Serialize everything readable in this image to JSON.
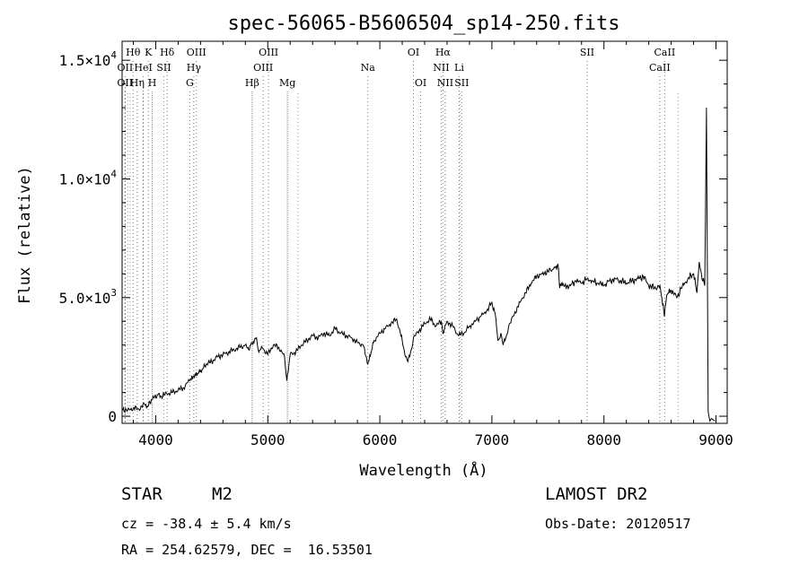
{
  "chart_data": {
    "type": "line",
    "title": "spec-56065-B5606504_sp14-250.fits",
    "xlabel": "Wavelength (Å)",
    "ylabel": "Flux (relative)",
    "xlim": [
      3700,
      9100
    ],
    "ylim": [
      -300,
      15800
    ],
    "x_ticks": [
      4000,
      5000,
      6000,
      7000,
      8000,
      9000
    ],
    "x_tick_labels": [
      "4000",
      "5000",
      "6000",
      "7000",
      "8000",
      "9000"
    ],
    "y_ticks": [
      0,
      5000,
      10000,
      15000
    ],
    "y_tick_labels": [
      {
        "mantissa": "0",
        "exp": ""
      },
      {
        "mantissa": "5.0×10",
        "exp": "3"
      },
      {
        "mantissa": "1.0×10",
        "exp": "4"
      },
      {
        "mantissa": "1.5×10",
        "exp": "4"
      }
    ],
    "series": [
      {
        "x": [
          3700,
          3750,
          3800,
          3850,
          3900,
          3930,
          3960,
          3990,
          4020,
          4050,
          4100,
          4150,
          4200,
          4250,
          4300,
          4340,
          4380,
          4420,
          4450,
          4500,
          4550,
          4600,
          4650,
          4700,
          4750,
          4800,
          4830,
          4860,
          4900,
          4920,
          4950,
          5000,
          5050,
          5100,
          5150,
          5170,
          5200,
          5250,
          5300,
          5350,
          5400,
          5450,
          5500,
          5550,
          5600,
          5650,
          5700,
          5750,
          5800,
          5850,
          5893,
          5950,
          6000,
          6050,
          6100,
          6150,
          6200,
          6230,
          6250,
          6280,
          6300,
          6350,
          6400,
          6450,
          6500,
          6550,
          6563,
          6600,
          6650,
          6700,
          6750,
          6800,
          6850,
          6900,
          6950,
          7000,
          7030,
          7054,
          7080,
          7100,
          7130,
          7150,
          7200,
          7250,
          7300,
          7350,
          7400,
          7450,
          7500,
          7550,
          7590,
          7605,
          7620,
          7650,
          7700,
          7750,
          7800,
          7850,
          7900,
          7950,
          8000,
          8050,
          8100,
          8150,
          8200,
          8250,
          8300,
          8350,
          8400,
          8450,
          8500,
          8540,
          8560,
          8600,
          8650,
          8700,
          8750,
          8800,
          8830,
          8850,
          8870,
          8900,
          8915,
          8930,
          8945,
          8960,
          8990
        ],
        "y": [
          300,
          250,
          350,
          300,
          500,
          400,
          700,
          800,
          900,
          850,
          950,
          1000,
          1100,
          1200,
          1500,
          1700,
          1800,
          2000,
          2200,
          2300,
          2500,
          2600,
          2700,
          2800,
          2900,
          3000,
          2800,
          3100,
          3300,
          2700,
          2900,
          2600,
          3000,
          2900,
          2500,
          1500,
          2600,
          2700,
          3000,
          3200,
          3400,
          3300,
          3500,
          3400,
          3700,
          3500,
          3400,
          3300,
          3100,
          3000,
          2200,
          3200,
          3500,
          3700,
          3900,
          4100,
          3200,
          2500,
          2300,
          2800,
          3300,
          3600,
          3900,
          4100,
          3800,
          4000,
          3500,
          4000,
          3800,
          3400,
          3500,
          3800,
          4000,
          4200,
          4400,
          4800,
          4300,
          3200,
          3500,
          3000,
          3400,
          3800,
          4300,
          4800,
          5200,
          5600,
          5900,
          6000,
          6100,
          6200,
          6400,
          5400,
          5600,
          5500,
          5500,
          5700,
          5600,
          5800,
          5700,
          5600,
          5500,
          5700,
          5800,
          5700,
          5600,
          5700,
          5800,
          5900,
          5500,
          5400,
          5500,
          4200,
          5100,
          5300,
          5000,
          5500,
          5800,
          6000,
          5200,
          6500,
          6000,
          5500,
          13000,
          200,
          -200,
          -100,
          -200
        ]
      }
    ],
    "lines": [
      {
        "label": "Hθ",
        "x": 3798,
        "row": 0
      },
      {
        "label": "K",
        "x": 3934,
        "row": 0
      },
      {
        "label": "Hδ",
        "x": 4102,
        "row": 0
      },
      {
        "label": "OIII",
        "x": 4363,
        "row": 0
      },
      {
        "label": "OIII",
        "x": 5007,
        "row": 0
      },
      {
        "label": "OI",
        "x": 6300,
        "row": 0
      },
      {
        "label": "Hα",
        "x": 6563,
        "row": 0
      },
      {
        "label": "SII",
        "x": 7850,
        "row": 0
      },
      {
        "label": "CaII",
        "x": 8542,
        "row": 0
      },
      {
        "label": "OII",
        "x": 3727,
        "row": 1
      },
      {
        "label": "HeI",
        "x": 3889,
        "row": 1
      },
      {
        "label": "SII",
        "x": 4072,
        "row": 1
      },
      {
        "label": "Hγ",
        "x": 4340,
        "row": 1
      },
      {
        "label": "OIII",
        "x": 4959,
        "row": 1
      },
      {
        "label": "Na",
        "x": 5893,
        "row": 1
      },
      {
        "label": "NII",
        "x": 6548,
        "row": 1
      },
      {
        "label": "Li",
        "x": 6708,
        "row": 1
      },
      {
        "label": "CaII",
        "x": 8498,
        "row": 1
      },
      {
        "label": "OII",
        "x": 3726,
        "row": 2
      },
      {
        "label": "Hη",
        "x": 3835,
        "row": 2
      },
      {
        "label": "H",
        "x": 3969,
        "row": 2
      },
      {
        "label": "G",
        "x": 4304,
        "row": 2
      },
      {
        "label": "Hβ",
        "x": 4861,
        "row": 2
      },
      {
        "label": "Mg",
        "x": 5175,
        "row": 2
      },
      {
        "label": "OI",
        "x": 6364,
        "row": 2
      },
      {
        "label": "NII",
        "x": 6584,
        "row": 2
      },
      {
        "label": "SII",
        "x": 6731,
        "row": 2
      }
    ],
    "extra_lines": [
      3750,
      3771,
      3889,
      3970,
      4861,
      5175,
      5269,
      6563,
      6717,
      8662
    ]
  },
  "info": {
    "class": "STAR",
    "subclass": "M2",
    "survey": "LAMOST DR2",
    "cz": "cz = -38.4 ± 5.4 km/s",
    "obs_date": "Obs-Date: 20120517",
    "coords": "RA = 254.62579, DEC =  16.53501"
  }
}
